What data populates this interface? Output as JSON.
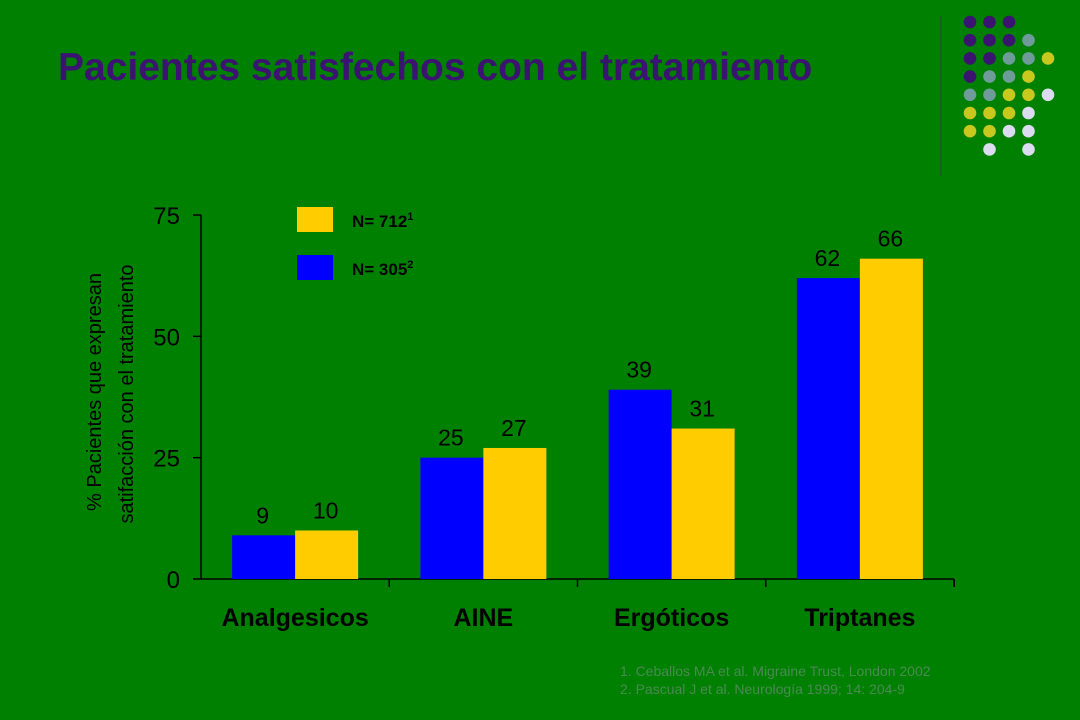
{
  "slide": {
    "title": "Pacientes satisfechos con el tratamiento"
  },
  "chart_data": {
    "type": "bar",
    "title": "",
    "ylabel_line1": "% Pacientes que expresan",
    "ylabel_line2": "satifacción con el tratamiento",
    "xlabel": "",
    "ylim": [
      0,
      75
    ],
    "yticks": [
      "0",
      "25",
      "50",
      "75"
    ],
    "categories": [
      "Analgesicos",
      "AINE",
      "Ergóticos",
      "Triptanes"
    ],
    "series": [
      {
        "legend_text": "N= 305",
        "legend_sup": "2",
        "color": "#0000ff",
        "values": [
          9,
          25,
          39,
          62
        ]
      },
      {
        "legend_text": "N= 712",
        "legend_sup": "1",
        "color": "#ffcc00",
        "values": [
          10,
          27,
          31,
          66
        ]
      }
    ],
    "legend_placement": "top-left",
    "grid": false
  },
  "decor": {
    "colors": [
      "#3a1470",
      "#6f9c9a",
      "#c8c81e",
      "#dcdcf0"
    ]
  },
  "references": [
    "1.  Ceballos MA et al.  Migraine Trust, London 2002",
    "2.  Pascual J et al. Neurología 1999; 14: 204-9"
  ]
}
